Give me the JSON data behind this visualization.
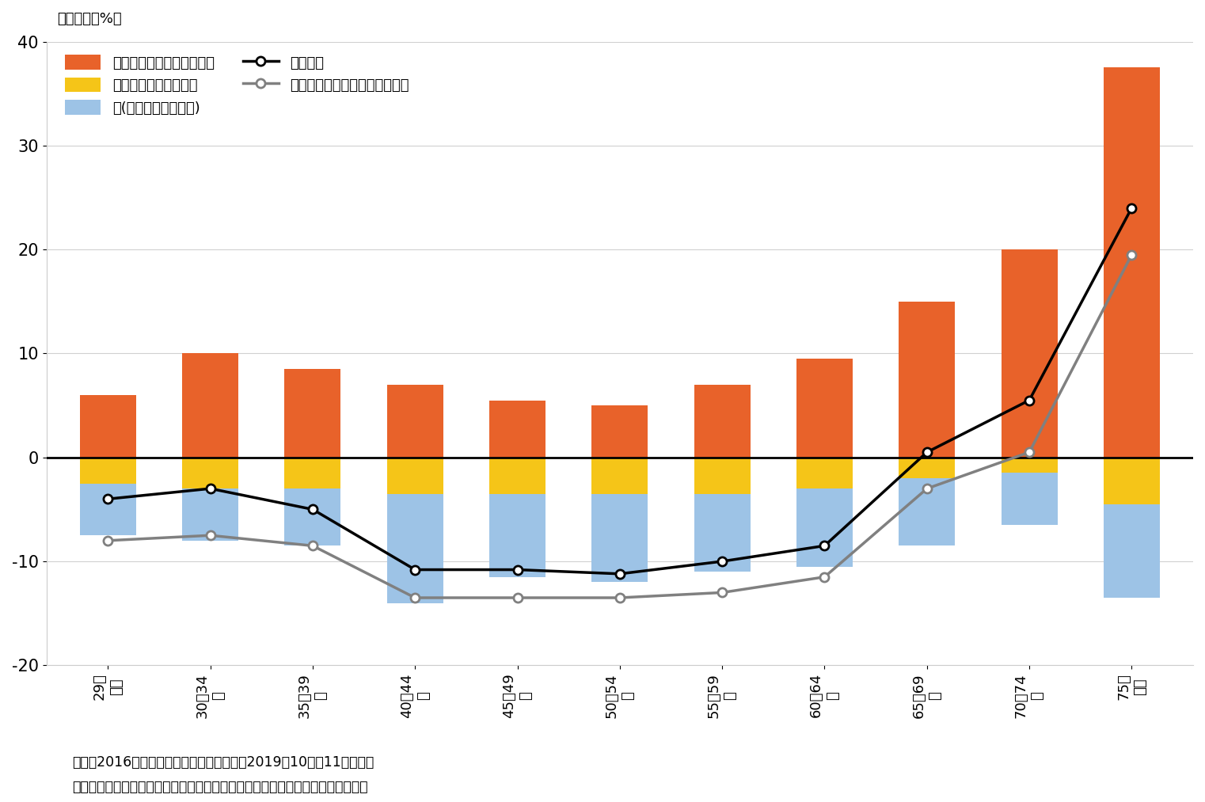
{
  "categories": [
    "29歳\n以下",
    "30～34\n歳",
    "35～39\n歳",
    "40～44\n歳",
    "45～49\n歳",
    "50～54\n歳",
    "55～59\n歳",
    "60～64\n歳",
    "65～69\n歳",
    "70～74\n歳",
    "75歳\n以上"
  ],
  "social_benefit": [
    6.0,
    10.0,
    8.5,
    7.0,
    5.5,
    5.0,
    7.0,
    9.5,
    15.0,
    20.0,
    37.5
  ],
  "social_insurance": [
    -2.5,
    -3.0,
    -3.0,
    -3.5,
    -3.5,
    -3.5,
    -3.5,
    -3.0,
    -2.0,
    -1.5,
    -4.5
  ],
  "tax": [
    -5.0,
    -5.0,
    -5.5,
    -10.5,
    -8.0,
    -8.5,
    -7.5,
    -7.5,
    -6.5,
    -5.0,
    -9.0
  ],
  "net_benefit": [
    -4.0,
    -3.0,
    -5.0,
    -10.8,
    -10.8,
    -11.2,
    -10.0,
    -8.5,
    0.5,
    5.5,
    24.0
  ],
  "net_benefit_with_consumption": [
    -8.0,
    -7.5,
    -8.5,
    -13.5,
    -13.5,
    -13.5,
    -13.0,
    -11.5,
    -3.0,
    0.5,
    19.5
  ],
  "color_social_benefit": "#E8622A",
  "color_social_insurance": "#F5C518",
  "color_tax": "#9DC3E6",
  "color_net_benefit": "#000000",
  "color_net_benefit_with_consumption": "#808080",
  "ylabel": "（所得比、%）",
  "ylim_min": -20,
  "ylim_max": 40,
  "yticks": [
    -20,
    -10,
    0,
    10,
    20,
    30,
    40
  ],
  "legend_labels": [
    "年金を除く社会保障給付額",
    "年金を除く社会保険料",
    "税(消費税を含まない)",
    "純給付額",
    "（参考）消費税を考慮した場合"
  ],
  "footnote1": "（注）2016年時点。ただし、消費税負担は2019年10月、11月のもの",
  "footnote2": "（出所）厚生労働省「所得再分配調査」、総務省「全国家計構造調査」より作成"
}
